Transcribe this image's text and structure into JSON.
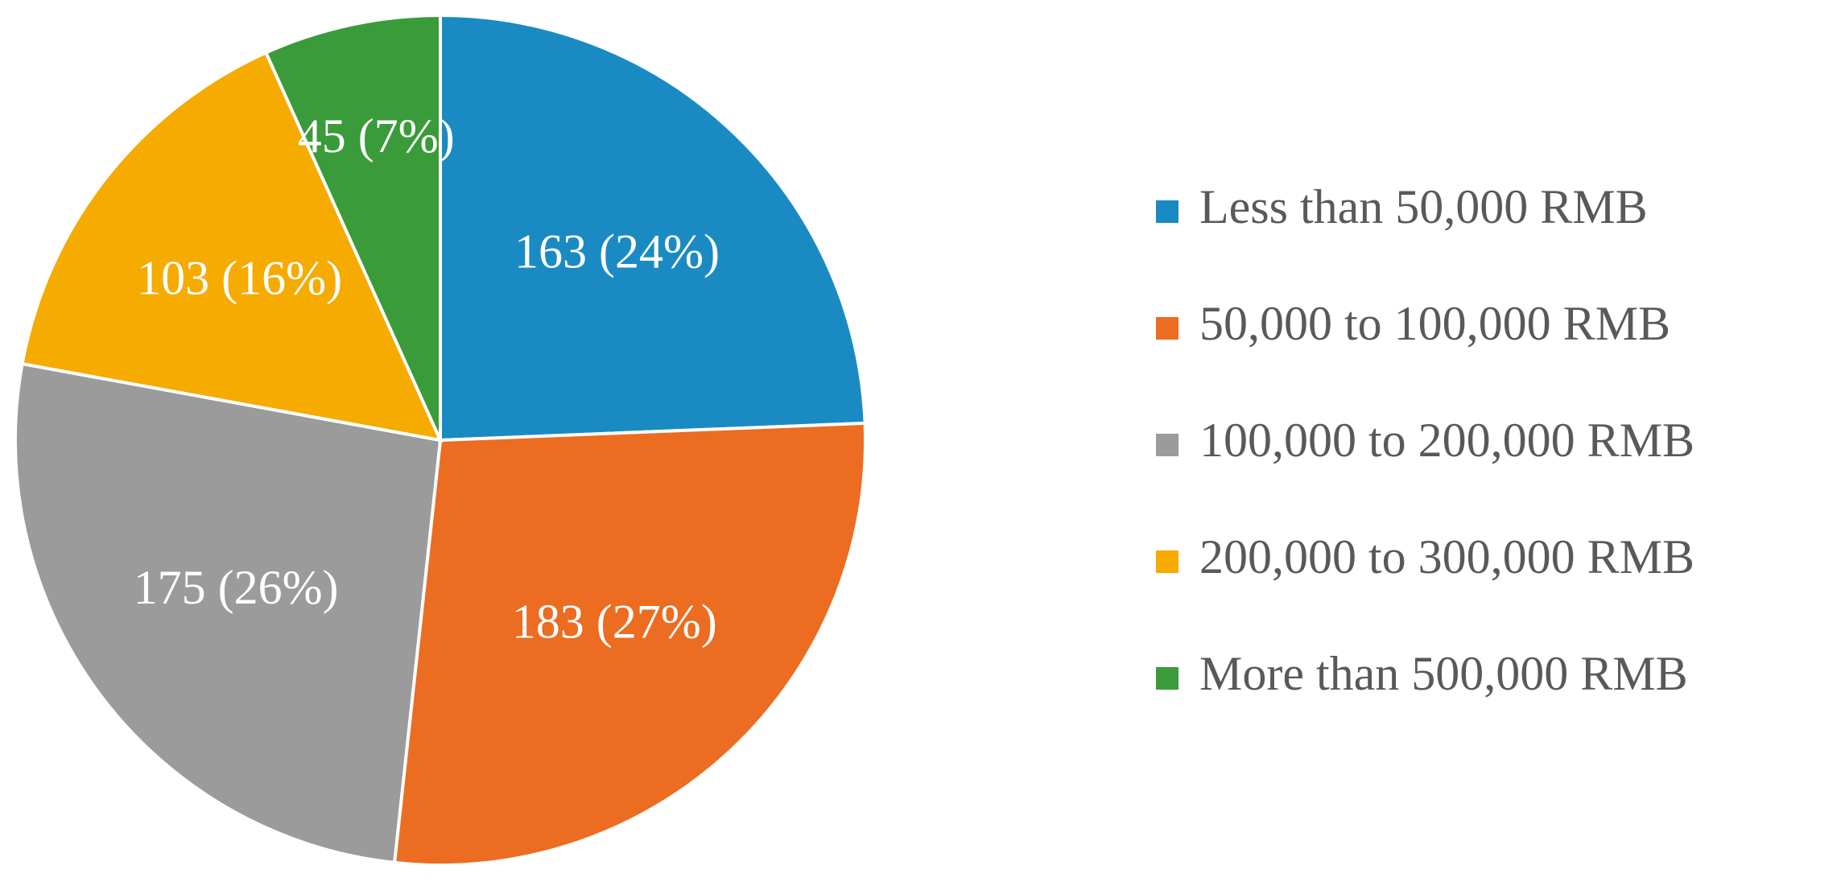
{
  "chart_data": {
    "type": "pie",
    "categories": [
      "Less than 50,000 RMB",
      "50,000 to 100,000 RMB",
      "100,000 to 200,000 RMB",
      "200,000 to 300,000 RMB",
      "More than 500,000 RMB"
    ],
    "values": [
      163,
      183,
      175,
      103,
      45
    ],
    "value_labels": [
      "163 (24%)",
      "183 (27%)",
      "175 (26%)",
      "103 (16%)",
      "45 (7%)"
    ],
    "colors": [
      "#1a8bc2",
      "#ec6c21",
      "#9b9b9b",
      "#f5ab00",
      "#3a9b3a"
    ],
    "legend": "right"
  }
}
